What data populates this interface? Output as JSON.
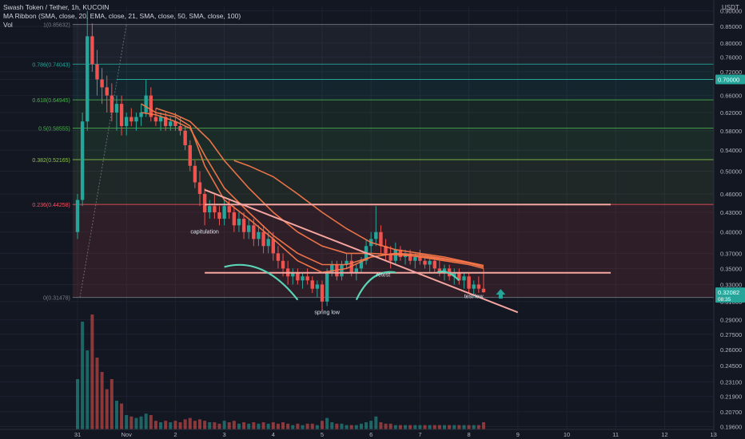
{
  "header": {
    "title": "Swash Token / Tether, 1h, KUCOIN",
    "indicator": "MA Ribbon (SMA, close, 20, EMA, close, 21, SMA, close, 50, SMA, close, 100)",
    "volume_label": "Vol",
    "currency": "USDT"
  },
  "colors": {
    "background": "#131722",
    "up": "#26a69a",
    "down": "#ef5350",
    "ma": "#f7774a",
    "level": "#f6a5a0",
    "arrow": "#26a69a"
  },
  "chart_data": {
    "type": "candlestick",
    "y_scale": "log",
    "ylim": [
      0.194,
      0.915
    ],
    "x_ticks": [
      {
        "label": "31",
        "t": 0
      },
      {
        "label": "Nov",
        "t": 1
      },
      {
        "label": "2",
        "t": 2
      },
      {
        "label": "3",
        "t": 3
      },
      {
        "label": "4",
        "t": 4
      },
      {
        "label": "5",
        "t": 5
      },
      {
        "label": "6",
        "t": 6
      },
      {
        "label": "7",
        "t": 7
      },
      {
        "label": "8",
        "t": 8
      },
      {
        "label": "9",
        "t": 9
      },
      {
        "label": "10",
        "t": 10
      },
      {
        "label": "11",
        "t": 11
      },
      {
        "label": "12",
        "t": 12
      },
      {
        "label": "13",
        "t": 13
      }
    ],
    "y_ticks": [
      "0.90000",
      "0.85000",
      "0.80000",
      "0.76000",
      "0.72000",
      "0.70000",
      "0.66000",
      "0.62000",
      "0.58000",
      "0.54000",
      "0.50000",
      "0.46000",
      "0.43000",
      "0.40000",
      "0.37000",
      "0.35000",
      "0.33000",
      "0.31000",
      "0.29000",
      "0.27500",
      "0.26000",
      "0.24500",
      "0.23100",
      "0.21900",
      "0.20700",
      "0.19600"
    ],
    "current_price_tag": {
      "label": "0.32082",
      "sub": "08:35",
      "value": 0.3208
    },
    "level_tag": {
      "label": "0.70000",
      "value": 0.7
    },
    "fibonacci": [
      {
        "label": "1(0.85632)",
        "value": 0.85632
      },
      {
        "label": "0.786(0.74043)",
        "value": 0.74043
      },
      {
        "label": "0.618(0.64945)",
        "value": 0.64945
      },
      {
        "label": "0.5(0.58555)",
        "value": 0.58555
      },
      {
        "label": "0.382(0.52165)",
        "value": 0.52165
      },
      {
        "label": "0.236(0.44258)",
        "value": 0.44258
      },
      {
        "label": "0(0.31478)",
        "value": 0.31478
      }
    ],
    "horizontal_levels": [
      {
        "value": 0.4425,
        "from": 2.6,
        "to": 10.9
      },
      {
        "value": 0.3445,
        "from": 2.6,
        "to": 10.9
      }
    ],
    "trendline": {
      "from": [
        2.6,
        0.467
      ],
      "to": [
        9.0,
        0.298
      ]
    },
    "annotations": [
      {
        "text": "capitulation",
        "t": 2.6,
        "value": 0.398
      },
      {
        "text": "spring low",
        "t": 5.1,
        "value": 0.296
      },
      {
        "text": "retest",
        "t": 6.25,
        "value": 0.34
      },
      {
        "text": "test low",
        "t": 8.1,
        "value": 0.314
      }
    ],
    "candles": [
      [
        0.0,
        0.4,
        0.46,
        0.39,
        0.45
      ],
      [
        0.1,
        0.45,
        0.62,
        0.44,
        0.6
      ],
      [
        0.2,
        0.6,
        0.9,
        0.58,
        0.82
      ],
      [
        0.3,
        0.82,
        0.86,
        0.72,
        0.74
      ],
      [
        0.4,
        0.74,
        0.78,
        0.66,
        0.7
      ],
      [
        0.5,
        0.7,
        0.73,
        0.64,
        0.68
      ],
      [
        0.6,
        0.68,
        0.71,
        0.62,
        0.66
      ],
      [
        0.7,
        0.66,
        0.69,
        0.6,
        0.62
      ],
      [
        0.8,
        0.62,
        0.66,
        0.58,
        0.64
      ],
      [
        0.9,
        0.64,
        0.66,
        0.57,
        0.59
      ],
      [
        1.0,
        0.59,
        0.62,
        0.57,
        0.61
      ],
      [
        1.1,
        0.61,
        0.63,
        0.59,
        0.6
      ],
      [
        1.2,
        0.6,
        0.62,
        0.58,
        0.61
      ],
      [
        1.3,
        0.61,
        0.64,
        0.59,
        0.62
      ],
      [
        1.4,
        0.62,
        0.7,
        0.61,
        0.66
      ],
      [
        1.5,
        0.66,
        0.68,
        0.6,
        0.61
      ],
      [
        1.6,
        0.61,
        0.63,
        0.59,
        0.6
      ],
      [
        1.7,
        0.6,
        0.62,
        0.58,
        0.61
      ],
      [
        1.8,
        0.61,
        0.62,
        0.58,
        0.59
      ],
      [
        1.9,
        0.59,
        0.61,
        0.58,
        0.6
      ],
      [
        2.0,
        0.6,
        0.62,
        0.58,
        0.59
      ],
      [
        2.1,
        0.59,
        0.61,
        0.57,
        0.58
      ],
      [
        2.2,
        0.58,
        0.59,
        0.54,
        0.55
      ],
      [
        2.3,
        0.55,
        0.56,
        0.5,
        0.51
      ],
      [
        2.4,
        0.51,
        0.52,
        0.47,
        0.48
      ],
      [
        2.5,
        0.48,
        0.5,
        0.44,
        0.46
      ],
      [
        2.6,
        0.46,
        0.47,
        0.41,
        0.43
      ],
      [
        2.7,
        0.43,
        0.45,
        0.42,
        0.44
      ],
      [
        2.8,
        0.44,
        0.46,
        0.42,
        0.43
      ],
      [
        2.9,
        0.43,
        0.44,
        0.41,
        0.42
      ],
      [
        3.0,
        0.42,
        0.45,
        0.41,
        0.44
      ],
      [
        3.1,
        0.44,
        0.45,
        0.42,
        0.43
      ],
      [
        3.2,
        0.43,
        0.44,
        0.4,
        0.41
      ],
      [
        3.3,
        0.41,
        0.43,
        0.4,
        0.42
      ],
      [
        3.4,
        0.42,
        0.43,
        0.39,
        0.4
      ],
      [
        3.5,
        0.4,
        0.42,
        0.39,
        0.41
      ],
      [
        3.6,
        0.41,
        0.42,
        0.38,
        0.39
      ],
      [
        3.7,
        0.39,
        0.41,
        0.38,
        0.4
      ],
      [
        3.8,
        0.4,
        0.41,
        0.37,
        0.38
      ],
      [
        3.9,
        0.38,
        0.4,
        0.37,
        0.39
      ],
      [
        4.0,
        0.39,
        0.4,
        0.36,
        0.37
      ],
      [
        4.1,
        0.37,
        0.38,
        0.35,
        0.36
      ],
      [
        4.2,
        0.36,
        0.37,
        0.34,
        0.35
      ],
      [
        4.3,
        0.35,
        0.36,
        0.33,
        0.34
      ],
      [
        4.4,
        0.34,
        0.35,
        0.33,
        0.345
      ],
      [
        4.5,
        0.345,
        0.35,
        0.33,
        0.335
      ],
      [
        4.6,
        0.335,
        0.345,
        0.325,
        0.34
      ],
      [
        4.7,
        0.34,
        0.35,
        0.33,
        0.335
      ],
      [
        4.8,
        0.335,
        0.34,
        0.32,
        0.325
      ],
      [
        4.9,
        0.325,
        0.335,
        0.315,
        0.33
      ],
      [
        5.0,
        0.33,
        0.335,
        0.3,
        0.31
      ],
      [
        5.1,
        0.31,
        0.35,
        0.305,
        0.345
      ],
      [
        5.2,
        0.345,
        0.36,
        0.34,
        0.355
      ],
      [
        5.3,
        0.355,
        0.36,
        0.335,
        0.34
      ],
      [
        5.4,
        0.34,
        0.36,
        0.335,
        0.355
      ],
      [
        5.5,
        0.355,
        0.37,
        0.35,
        0.36
      ],
      [
        5.6,
        0.36,
        0.37,
        0.34,
        0.345
      ],
      [
        5.7,
        0.345,
        0.355,
        0.335,
        0.35
      ],
      [
        5.8,
        0.35,
        0.365,
        0.345,
        0.36
      ],
      [
        5.9,
        0.36,
        0.39,
        0.355,
        0.38
      ],
      [
        6.0,
        0.38,
        0.4,
        0.37,
        0.39
      ],
      [
        6.1,
        0.39,
        0.44,
        0.38,
        0.4
      ],
      [
        6.2,
        0.4,
        0.41,
        0.37,
        0.38
      ],
      [
        6.3,
        0.38,
        0.39,
        0.36,
        0.37
      ],
      [
        6.4,
        0.37,
        0.38,
        0.35,
        0.36
      ],
      [
        6.5,
        0.36,
        0.385,
        0.355,
        0.375
      ],
      [
        6.6,
        0.375,
        0.38,
        0.36,
        0.365
      ],
      [
        6.7,
        0.365,
        0.375,
        0.355,
        0.37
      ],
      [
        6.8,
        0.37,
        0.375,
        0.355,
        0.36
      ],
      [
        6.9,
        0.36,
        0.37,
        0.35,
        0.365
      ],
      [
        7.0,
        0.365,
        0.375,
        0.355,
        0.36
      ],
      [
        7.1,
        0.36,
        0.365,
        0.35,
        0.355
      ],
      [
        7.2,
        0.355,
        0.365,
        0.345,
        0.36
      ],
      [
        7.3,
        0.36,
        0.365,
        0.345,
        0.35
      ],
      [
        7.4,
        0.35,
        0.36,
        0.34,
        0.345
      ],
      [
        7.5,
        0.345,
        0.355,
        0.335,
        0.35
      ],
      [
        7.6,
        0.35,
        0.355,
        0.335,
        0.34
      ],
      [
        7.7,
        0.34,
        0.35,
        0.33,
        0.345
      ],
      [
        7.8,
        0.345,
        0.35,
        0.33,
        0.335
      ],
      [
        7.9,
        0.335,
        0.345,
        0.325,
        0.34
      ],
      [
        8.0,
        0.34,
        0.345,
        0.32,
        0.325
      ],
      [
        8.1,
        0.325,
        0.335,
        0.315,
        0.33
      ],
      [
        8.2,
        0.33,
        0.34,
        0.32,
        0.325
      ],
      [
        8.3,
        0.325,
        0.35,
        0.32,
        0.3208
      ]
    ],
    "moving_averages": [
      {
        "t": [
          1.3,
          1.6,
          2.0,
          2.3,
          2.6,
          3.0,
          3.5,
          4.0,
          4.5,
          5.0,
          5.5,
          6.0,
          6.5,
          7.0,
          7.5,
          8.0,
          8.3
        ],
        "v": [
          0.64,
          0.62,
          0.61,
          0.59,
          0.51,
          0.45,
          0.42,
          0.39,
          0.36,
          0.345,
          0.35,
          0.365,
          0.37,
          0.365,
          0.36,
          0.355,
          0.35
        ]
      },
      {
        "t": [
          1.3,
          1.6,
          2.0,
          2.3,
          2.6,
          3.0,
          3.5,
          4.0,
          4.5,
          5.0,
          5.5,
          6.0,
          6.5,
          7.0,
          7.5,
          8.0,
          8.3
        ],
        "v": [
          0.62,
          0.615,
          0.6,
          0.585,
          0.53,
          0.47,
          0.43,
          0.395,
          0.37,
          0.355,
          0.355,
          0.365,
          0.37,
          0.368,
          0.363,
          0.357,
          0.352
        ]
      },
      {
        "t": [
          1.6,
          2.0,
          2.3,
          2.7,
          3.0,
          3.5,
          4.0,
          4.5,
          5.0,
          5.5,
          6.0,
          6.5,
          7.0,
          7.5,
          8.0,
          8.3
        ],
        "v": [
          0.63,
          0.615,
          0.6,
          0.56,
          0.52,
          0.47,
          0.43,
          0.4,
          0.38,
          0.37,
          0.37,
          0.368,
          0.366,
          0.362,
          0.357,
          0.352
        ]
      },
      {
        "t": [
          3.2,
          3.5,
          4.0,
          4.5,
          5.0,
          5.5,
          6.0,
          6.5,
          7.0,
          7.5,
          8.0,
          8.3
        ],
        "v": [
          0.52,
          0.51,
          0.49,
          0.46,
          0.43,
          0.405,
          0.385,
          0.375,
          0.37,
          0.365,
          0.358,
          0.354
        ]
      }
    ],
    "volume": [
      [
        0.0,
        0.35,
        1
      ],
      [
        0.1,
        0.75,
        1
      ],
      [
        0.2,
        0.55,
        1
      ],
      [
        0.3,
        0.8,
        0
      ],
      [
        0.4,
        0.5,
        0
      ],
      [
        0.5,
        0.4,
        0
      ],
      [
        0.6,
        0.28,
        0
      ],
      [
        0.7,
        0.35,
        0
      ],
      [
        0.8,
        0.2,
        1
      ],
      [
        0.9,
        0.18,
        0
      ],
      [
        1.0,
        0.1,
        1
      ],
      [
        1.1,
        0.09,
        0
      ],
      [
        1.2,
        0.08,
        1
      ],
      [
        1.3,
        0.09,
        1
      ],
      [
        1.4,
        0.11,
        1
      ],
      [
        1.5,
        0.1,
        0
      ],
      [
        1.6,
        0.06,
        0
      ],
      [
        1.7,
        0.05,
        1
      ],
      [
        1.8,
        0.06,
        0
      ],
      [
        1.9,
        0.05,
        1
      ],
      [
        2.0,
        0.06,
        0
      ],
      [
        2.1,
        0.05,
        0
      ],
      [
        2.2,
        0.07,
        0
      ],
      [
        2.3,
        0.08,
        0
      ],
      [
        2.4,
        0.06,
        0
      ],
      [
        2.5,
        0.07,
        0
      ],
      [
        2.6,
        0.06,
        0
      ],
      [
        2.7,
        0.05,
        1
      ],
      [
        2.8,
        0.05,
        0
      ],
      [
        2.9,
        0.04,
        0
      ],
      [
        3.0,
        0.06,
        1
      ],
      [
        3.1,
        0.05,
        0
      ],
      [
        3.2,
        0.06,
        0
      ],
      [
        3.3,
        0.04,
        1
      ],
      [
        3.4,
        0.05,
        0
      ],
      [
        3.5,
        0.04,
        1
      ],
      [
        3.6,
        0.05,
        0
      ],
      [
        3.7,
        0.04,
        1
      ],
      [
        3.8,
        0.05,
        0
      ],
      [
        3.9,
        0.04,
        1
      ],
      [
        4.0,
        0.05,
        0
      ],
      [
        4.1,
        0.04,
        0
      ],
      [
        4.2,
        0.05,
        0
      ],
      [
        4.3,
        0.04,
        0
      ],
      [
        4.4,
        0.03,
        1
      ],
      [
        4.5,
        0.04,
        0
      ],
      [
        4.6,
        0.03,
        1
      ],
      [
        4.7,
        0.04,
        0
      ],
      [
        4.8,
        0.04,
        0
      ],
      [
        4.9,
        0.03,
        1
      ],
      [
        5.0,
        0.06,
        0
      ],
      [
        5.1,
        0.08,
        1
      ],
      [
        5.2,
        0.05,
        1
      ],
      [
        5.3,
        0.04,
        0
      ],
      [
        5.4,
        0.04,
        1
      ],
      [
        5.5,
        0.03,
        1
      ],
      [
        5.6,
        0.03,
        0
      ],
      [
        5.7,
        0.03,
        1
      ],
      [
        5.8,
        0.04,
        1
      ],
      [
        5.9,
        0.05,
        1
      ],
      [
        6.0,
        0.06,
        1
      ],
      [
        6.1,
        0.09,
        1
      ],
      [
        6.2,
        0.05,
        0
      ],
      [
        6.3,
        0.04,
        0
      ],
      [
        6.4,
        0.04,
        0
      ],
      [
        6.5,
        0.03,
        1
      ],
      [
        6.6,
        0.03,
        0
      ],
      [
        6.7,
        0.03,
        1
      ],
      [
        6.8,
        0.03,
        0
      ],
      [
        6.9,
        0.03,
        1
      ],
      [
        7.0,
        0.03,
        1
      ],
      [
        7.1,
        0.03,
        0
      ],
      [
        7.2,
        0.03,
        1
      ],
      [
        7.3,
        0.03,
        0
      ],
      [
        7.4,
        0.03,
        0
      ],
      [
        7.5,
        0.03,
        1
      ],
      [
        7.6,
        0.03,
        0
      ],
      [
        7.7,
        0.03,
        1
      ],
      [
        7.8,
        0.03,
        0
      ],
      [
        7.9,
        0.03,
        1
      ],
      [
        8.0,
        0.03,
        0
      ],
      [
        8.1,
        0.03,
        1
      ],
      [
        8.2,
        0.03,
        0
      ],
      [
        8.3,
        0.05,
        0
      ]
    ]
  }
}
